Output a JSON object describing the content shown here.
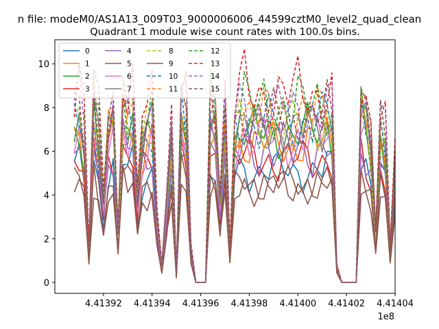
{
  "chart_data": {
    "type": "line",
    "suptitle": "n file: modeM0/AS1A13_009T03_9000006006_44599cztM0_level2_quad_clean",
    "title": "Quadrant 1 module wise count rates with 100.0s bins.",
    "xlabel": "",
    "ylabel": "",
    "x_offset_label": "1e8",
    "xlim": [
      4.4139,
      4.41404
    ],
    "ylim": [
      -0.5,
      11.1
    ],
    "x_ticks": [
      4.41392,
      4.41394,
      4.41396,
      4.41398,
      4.414,
      4.41402,
      4.41404
    ],
    "x_tick_labels": [
      "4.41392",
      "4.41394",
      "4.41396",
      "4.41398",
      "4.41400",
      "4.41402",
      "4.41404"
    ],
    "y_ticks": [
      0,
      2,
      4,
      6,
      8,
      10
    ],
    "y_tick_labels": [
      "0",
      "2",
      "4",
      "6",
      "8",
      "10"
    ],
    "grid": false,
    "legend_position": "top-left",
    "legend_columns": 4,
    "x": [
      4.413908,
      4.41391,
      4.413912,
      4.413914,
      4.413916,
      4.413918,
      4.41392,
      4.413922,
      4.413924,
      4.413926,
      4.413928,
      4.41393,
      4.413932,
      4.413934,
      4.413936,
      4.413938,
      4.41394,
      4.413942,
      4.413944,
      4.413946,
      4.413948,
      4.41395,
      4.413952,
      4.413954,
      4.413956,
      4.413958,
      4.41396,
      4.413962,
      4.413964,
      4.413966,
      4.413968,
      4.41397,
      4.413972,
      4.413974,
      4.413976,
      4.413978,
      4.41398,
      4.413982,
      4.413984,
      4.413986,
      4.413988,
      4.41399,
      4.413992,
      4.413994,
      4.413996,
      4.413998,
      4.414,
      4.414002,
      4.414004,
      4.414006,
      4.414008,
      4.41401,
      4.414012,
      4.414014,
      4.414016,
      4.414018,
      4.41402,
      4.414022,
      4.414024,
      4.414026,
      4.414028,
      4.41403,
      4.414032,
      4.414034,
      4.414036,
      4.414038,
      4.41404,
      4.414041
    ],
    "series": [
      {
        "name": "0",
        "color": "#1f77b4",
        "dash": "solid",
        "level": 5.1
      },
      {
        "name": "1",
        "color": "#ff7f0e",
        "dash": "solid",
        "level": 6.3
      },
      {
        "name": "2",
        "color": "#2ca02c",
        "dash": "solid",
        "level": 6.8
      },
      {
        "name": "3",
        "color": "#d62728",
        "dash": "solid",
        "level": 5.6
      },
      {
        "name": "4",
        "color": "#9467bd",
        "dash": "solid",
        "level": 6.0
      },
      {
        "name": "5",
        "color": "#8c564b",
        "dash": "solid",
        "level": 4.3
      },
      {
        "name": "6",
        "color": "#e377c2",
        "dash": "solid",
        "level": 6.5
      },
      {
        "name": "7",
        "color": "#7f7f7f",
        "dash": "solid",
        "level": 7.0
      },
      {
        "name": "8",
        "color": "#bcbd22",
        "dash": "dashed",
        "level": 7.2
      },
      {
        "name": "9",
        "color": "#8c564b",
        "dash": "solid",
        "level": 4.5
      },
      {
        "name": "10",
        "color": "#1f77b4",
        "dash": "dashed",
        "level": 7.3
      },
      {
        "name": "11",
        "color": "#ff7f0e",
        "dash": "dashed",
        "level": 7.6
      },
      {
        "name": "12",
        "color": "#2ca02c",
        "dash": "dashed",
        "level": 8.0
      },
      {
        "name": "13",
        "color": "#d62728",
        "dash": "dashed",
        "level": 8.6
      },
      {
        "name": "14",
        "color": "#9467bd",
        "dash": "dashed",
        "level": 7.8
      },
      {
        "name": "15",
        "color": "#8c564b",
        "dash": "dashed",
        "level": 7.5
      }
    ],
    "profile": [
      1.0,
      1.05,
      0.9,
      0.2,
      1.1,
      0.9,
      0.5,
      0.95,
      1.0,
      0.3,
      1.1,
      1.0,
      1.05,
      0.5,
      0.9,
      0.95,
      1.0,
      0.4,
      0.1,
      0.5,
      0.9,
      0.05,
      1.1,
      1.0,
      0.2,
      0.0,
      0.0,
      0.0,
      1.05,
      1.0,
      0.5,
      1.0,
      0.2,
      0.95,
      1.0,
      1.05,
      1.0,
      1.0,
      0.98,
      1.02,
      1.0,
      0.99,
      1.0,
      1.03,
      1.0,
      0.98,
      1.02,
      1.0,
      1.01,
      0.99,
      1.02,
      1.0,
      1.04,
      1.0,
      0.1,
      0.0,
      0.0,
      0.0,
      0.0,
      1.1,
      1.0,
      0.85,
      0.3,
      0.95,
      0.85,
      0.2,
      0.8,
      0.15
    ]
  }
}
